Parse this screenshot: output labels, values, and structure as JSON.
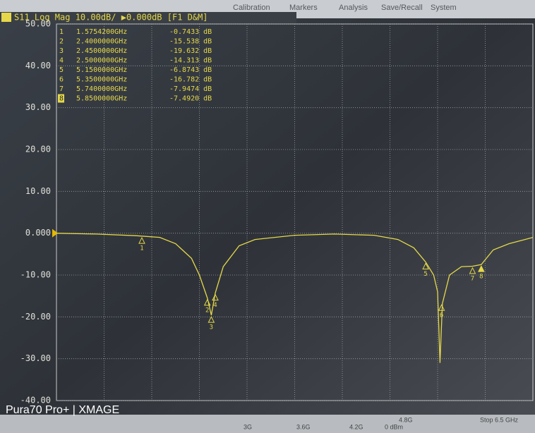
{
  "chart_data": {
    "type": "line",
    "header": "S11 Log Mag 10.00dB/ ▶0.000dB [F1 D&M]",
    "color": "#e6d84a",
    "xlim": [
      0.5,
      6.5
    ],
    "ylim": [
      -40,
      50
    ],
    "yticks": [
      {
        "value": 50,
        "label": "50.00"
      },
      {
        "value": 40,
        "label": "40.00"
      },
      {
        "value": 30,
        "label": "30.00"
      },
      {
        "value": 20,
        "label": "20.00"
      },
      {
        "value": 10,
        "label": "10.00"
      },
      {
        "value": 0,
        "label": "0.000"
      },
      {
        "value": -10,
        "label": "-10.00"
      },
      {
        "value": -20,
        "label": "-20.00"
      },
      {
        "value": -30,
        "label": "-30.00"
      },
      {
        "value": -40,
        "label": "-40.00"
      }
    ],
    "grid": true,
    "x": [
      0.5,
      1.0,
      1.5,
      1.8,
      2.0,
      2.2,
      2.3,
      2.4,
      2.45,
      2.5,
      2.6,
      2.8,
      3.0,
      3.5,
      4.0,
      4.5,
      4.8,
      5.0,
      5.15,
      5.25,
      5.3,
      5.33,
      5.36,
      5.45,
      5.6,
      5.74,
      5.85,
      6.0,
      6.2,
      6.4,
      6.5
    ],
    "values": [
      0,
      -0.2,
      -0.6,
      -1,
      -2.5,
      -6,
      -10,
      -15.5,
      -19.6,
      -14.3,
      -8,
      -3,
      -1.5,
      -0.5,
      -0.2,
      -0.5,
      -1.5,
      -3.5,
      -6.9,
      -10,
      -14,
      -31,
      -16.8,
      -10,
      -8,
      -7.9,
      -7.5,
      -4,
      -2.5,
      -1.5,
      -1
    ],
    "markers": {
      "names": [
        "1",
        "2",
        "3",
        "4",
        "5",
        "6",
        "7",
        "8"
      ],
      "x": [
        1.57542,
        2.4,
        2.45,
        2.5,
        5.15,
        5.35,
        5.74,
        5.85
      ],
      "x_labels": [
        "1.5754200GHz",
        "2.4000000GHz",
        "2.4500000GHz",
        "2.5000000GHz",
        "5.1500000GHz",
        "5.3500000GHz",
        "5.7400000GHz",
        "5.8500000GHz"
      ],
      "values": [
        -0.7433,
        -15.538,
        -19.632,
        -14.313,
        -6.8743,
        -16.782,
        -7.9474,
        -7.492
      ],
      "value_labels": [
        "-0.7433 dB",
        "-15.538 dB",
        "-19.632 dB",
        "-14.313 dB",
        "-6.8743 dB",
        "-16.782 dB",
        "-7.9474 dB",
        "-7.4920 dB"
      ],
      "active": 7
    }
  },
  "menu": [
    "Calibration",
    "Markers",
    "Analysis",
    "Save/Recall",
    "System"
  ],
  "footer": [
    "3G",
    "3.6G",
    "4.2G",
    "4.8G",
    "0 dBm",
    "Stop 6.5 GHz"
  ],
  "watermark": "Pura70 Pro+ | XMAGE"
}
